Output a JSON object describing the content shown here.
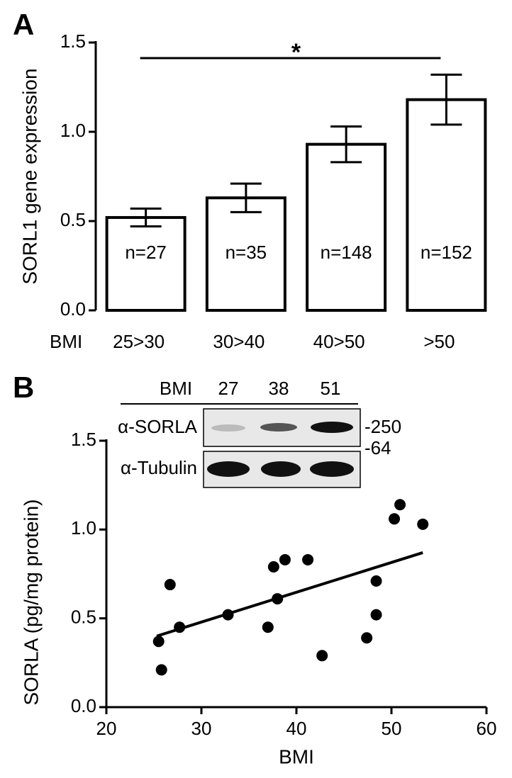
{
  "chart_data": [
    {
      "type": "bar",
      "panel_label": "A",
      "ylabel": "SORL1 gene expression",
      "xlabel": "BMI",
      "categories": [
        "25>30",
        "30>40",
        "40>50",
        ">50"
      ],
      "values": [
        0.52,
        0.63,
        0.93,
        1.18
      ],
      "errors": [
        0.05,
        0.08,
        0.1,
        0.14
      ],
      "bar_labels": [
        "n=27",
        "n=35",
        "n=148",
        "n=152"
      ],
      "significance": "*",
      "color": "#ffffff",
      "ylim": [
        0,
        1.5
      ],
      "yticks": [
        {
          "value": 0,
          "label": "0.0"
        },
        0.5,
        {
          "value": 1,
          "label": "1.0"
        },
        1.5
      ]
    },
    {
      "type": "scatter",
      "panel_label": "B",
      "ylabel": "SORLA (pg/mg protein)",
      "xlabel": "BMI",
      "x": [
        25.5,
        25.8,
        26.7,
        27.7,
        32.8,
        37.0,
        37.6,
        38.0,
        38.8,
        41.2,
        42.7,
        47.4,
        48.4,
        48.4,
        50.3,
        50.9,
        53.3
      ],
      "values": [
        0.37,
        0.21,
        0.69,
        0.45,
        0.52,
        0.45,
        0.79,
        0.61,
        0.83,
        0.83,
        0.29,
        0.39,
        0.71,
        0.52,
        1.06,
        1.14,
        1.03
      ],
      "color": "#000000",
      "fit": {
        "x": [
          25.3,
          53.3
        ],
        "values": [
          0.4,
          0.87
        ]
      },
      "xlim": [
        20,
        60
      ],
      "xticks": [
        20,
        30,
        40,
        50,
        60
      ],
      "ylim": [
        0,
        1.5
      ],
      "yticks": [
        {
          "value": 0,
          "label": "0.0"
        },
        0.5,
        {
          "value": 1,
          "label": "1.0"
        },
        1.5
      ],
      "inset": {
        "label": "BMI",
        "lanes": [
          "27",
          "38",
          "51"
        ],
        "rows": [
          "α-SORLA",
          "α-Tubulin"
        ],
        "markers": [
          "-250",
          "-64"
        ]
      }
    }
  ]
}
